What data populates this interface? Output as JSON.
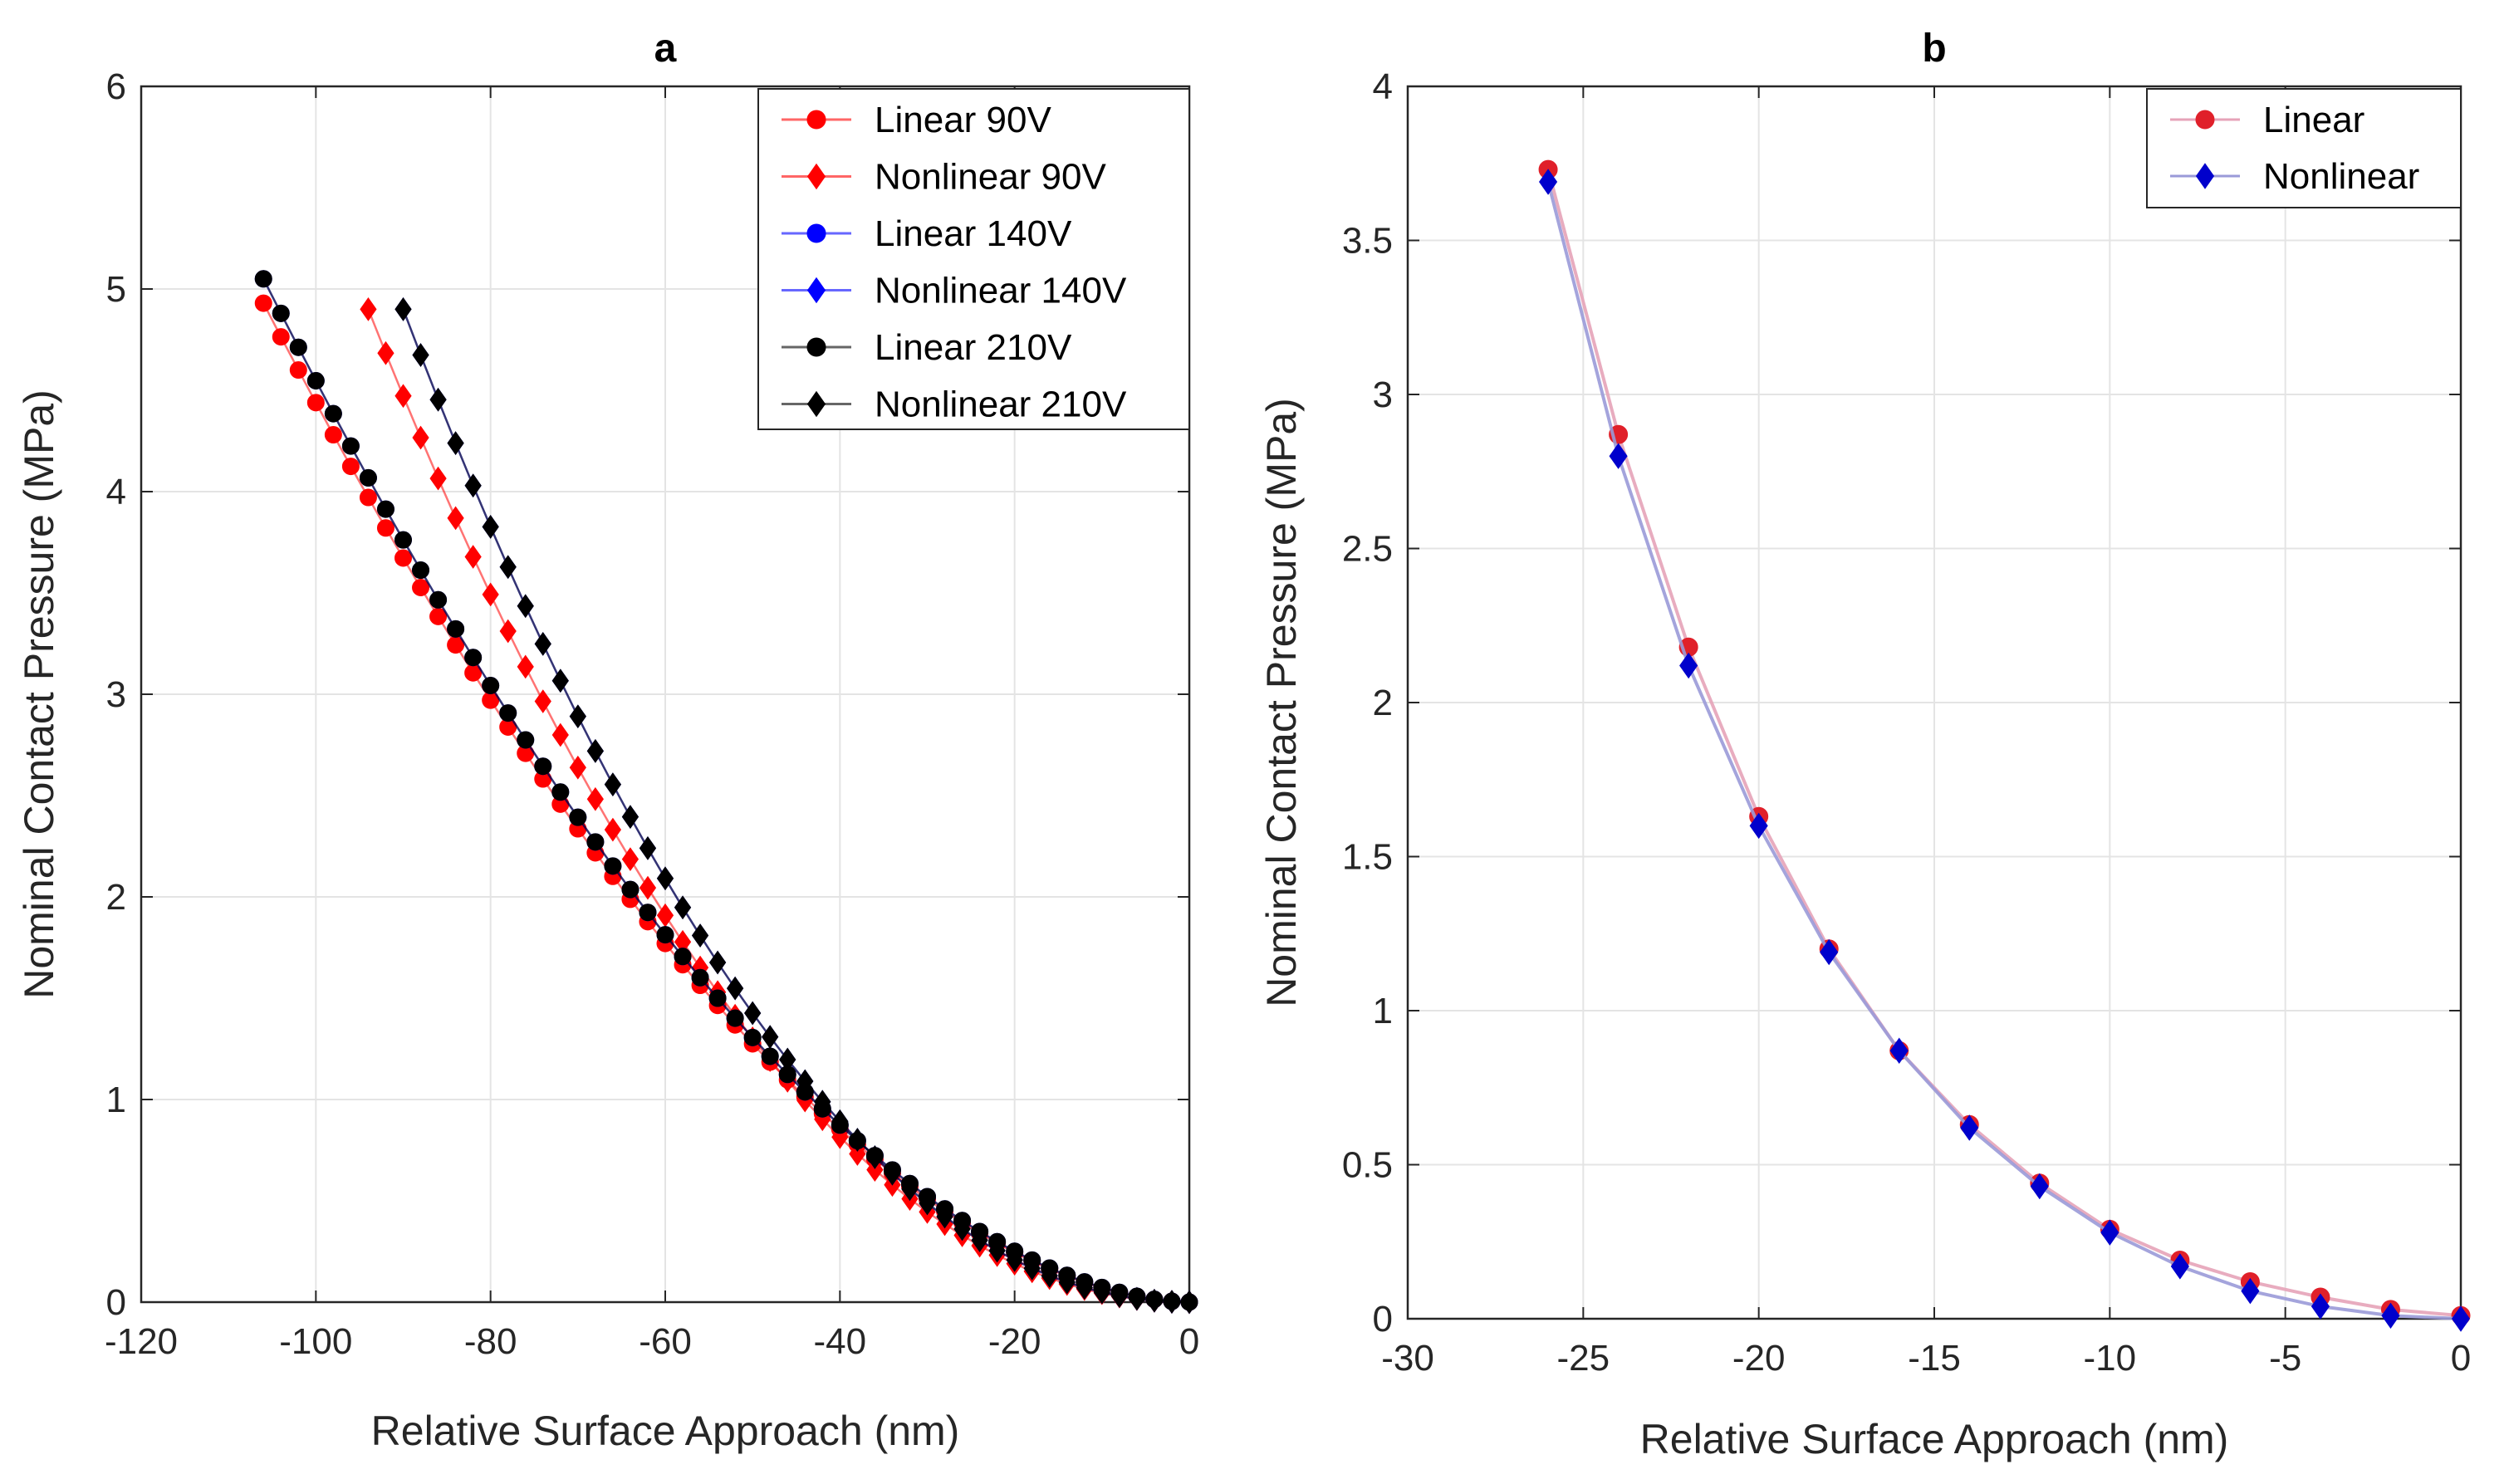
{
  "chart_data": [
    {
      "id": "a",
      "type": "line",
      "title": "a",
      "xlabel": "Relative Surface Approach (nm)",
      "ylabel": "Nominal Contact Pressure (MPa)",
      "xlim": [
        -120,
        0
      ],
      "ylim": [
        0,
        6
      ],
      "xticks": [
        -120,
        -100,
        -80,
        -60,
        -40,
        -20,
        0
      ],
      "yticks": [
        0,
        1,
        2,
        3,
        4,
        5,
        6
      ],
      "grid": true,
      "legend_position": "top-right",
      "series": [
        {
          "name": "Linear 90V",
          "color": "#ff0000",
          "marker": "circle",
          "x0": -106,
          "x1": 0,
          "y0": 4.93,
          "n": 54,
          "shape": "rel"
        },
        {
          "name": "Nonlinear 90V",
          "color": "#ff0000",
          "marker": "diamond",
          "x0": -94,
          "x1": 0,
          "y0": 4.9,
          "n": 48,
          "shape": "nl"
        },
        {
          "name": "Linear 140V",
          "color": "#0000ff",
          "marker": "circle",
          "x0": -106,
          "x1": 0,
          "y0": 5.05,
          "n": 54,
          "shape": "rel"
        },
        {
          "name": "Nonlinear 140V",
          "color": "#0000ff",
          "marker": "diamond",
          "x0": -90,
          "x1": 0,
          "y0": 4.9,
          "n": 46,
          "shape": "nl"
        },
        {
          "name": "Linear 210V",
          "color": "#000000",
          "marker": "circle",
          "x0": -106,
          "x1": 0,
          "y0": 5.05,
          "n": 54,
          "shape": "rel"
        },
        {
          "name": "Nonlinear 210V",
          "color": "#000000",
          "marker": "diamond",
          "x0": -90,
          "x1": 0,
          "y0": 4.9,
          "n": 46,
          "shape": "nl"
        }
      ]
    },
    {
      "id": "b",
      "type": "line",
      "title": "b",
      "xlabel": "Relative Surface Approach (nm)",
      "ylabel": "Nominal Contact Pressure (MPa)",
      "xlim": [
        -30,
        0
      ],
      "ylim": [
        0,
        4
      ],
      "xticks": [
        -30,
        -25,
        -20,
        -15,
        -10,
        -5,
        0
      ],
      "yticks": [
        0,
        0.5,
        1,
        1.5,
        2,
        2.5,
        3,
        3.5,
        4
      ],
      "grid": true,
      "legend_position": "top-right",
      "series": [
        {
          "name": "Linear",
          "color": "#e0202a",
          "line_color": "#e6a3b8",
          "marker": "circle",
          "x": [
            -26,
            -24,
            -22,
            -20,
            -18,
            -16,
            -14,
            -12,
            -10,
            -8,
            -6,
            -4,
            -2,
            0
          ],
          "values": [
            3.73,
            2.87,
            2.18,
            1.63,
            1.2,
            0.87,
            0.63,
            0.44,
            0.29,
            0.19,
            0.12,
            0.07,
            0.03,
            0.01
          ]
        },
        {
          "name": "Nonlinear",
          "color": "#0000cc",
          "line_color": "#9a9ad8",
          "marker": "diamond",
          "x": [
            -26,
            -24,
            -22,
            -20,
            -18,
            -16,
            -14,
            -12,
            -10,
            -8,
            -6,
            -4,
            -2,
            0
          ],
          "values": [
            3.69,
            2.8,
            2.12,
            1.6,
            1.19,
            0.87,
            0.62,
            0.43,
            0.28,
            0.17,
            0.09,
            0.04,
            0.01,
            0.0
          ]
        }
      ]
    }
  ]
}
